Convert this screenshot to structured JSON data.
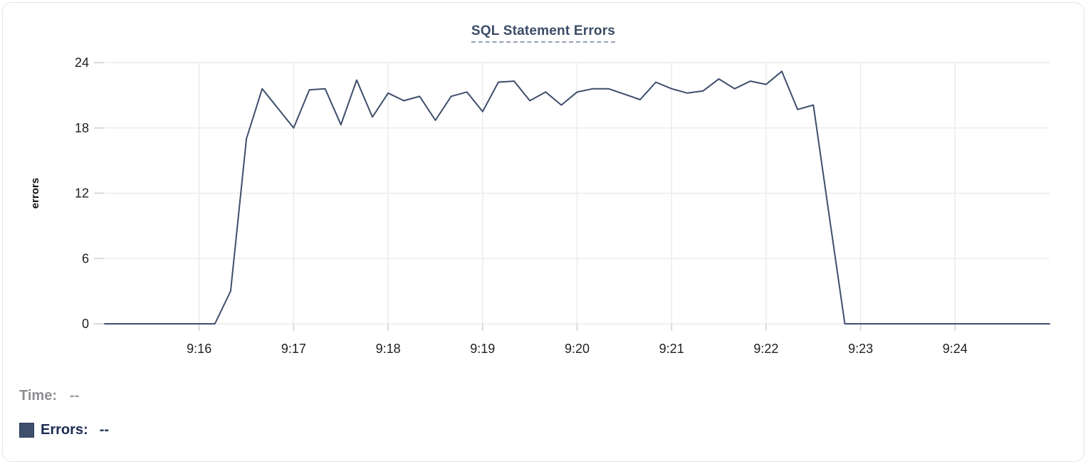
{
  "card": {
    "name": "sql-statement-errors-chart-card"
  },
  "chart_data": {
    "type": "line",
    "title": "SQL Statement Errors",
    "xlabel": "",
    "ylabel": "errors",
    "ylim": [
      0,
      24
    ],
    "y_ticks": [
      0,
      6,
      12,
      18,
      24
    ],
    "x_start": "9:15:00",
    "x_end": "9:25:00",
    "x_interval_seconds": 10,
    "x_tick_labels": [
      "9:16",
      "9:17",
      "9:18",
      "9:19",
      "9:20",
      "9:21",
      "9:22",
      "9:23",
      "9:24"
    ],
    "grid": true,
    "legend_position": "bottom-left",
    "series": [
      {
        "name": "Errors",
        "color": "#3e4e6b",
        "values": [
          0,
          0,
          0,
          0,
          0,
          0,
          0,
          0,
          3,
          17,
          21.6,
          19.8,
          18,
          21.5,
          21.6,
          18.3,
          22.4,
          19,
          21.2,
          20.5,
          20.9,
          18.7,
          20.9,
          21.3,
          19.5,
          22.2,
          22.3,
          20.5,
          21.3,
          20.1,
          21.3,
          21.6,
          21.6,
          21.1,
          20.6,
          22.2,
          21.6,
          21.2,
          21.4,
          22.5,
          21.6,
          22.3,
          22,
          23.2,
          19.7,
          20.1,
          10,
          0,
          0,
          0,
          0,
          0,
          0,
          0,
          0,
          0,
          0,
          0,
          0,
          0,
          0
        ]
      }
    ]
  },
  "tooltip_legend": {
    "time_label": "Time:",
    "time_value": "--",
    "errors_label": "Errors:",
    "errors_value": "--",
    "swatch_color": "#3e4f6e"
  },
  "colors": {
    "line": "#3e4e6b",
    "title": "#3a4c66",
    "title_underline": "#94a1b8",
    "grid": "#ececec",
    "tick": "#d9d9d9",
    "axis_text": "#1f1f1f",
    "legend_gray": "#8e8e93",
    "legend_navy": "#1d2b52",
    "card_border": "#e2e3e6"
  }
}
